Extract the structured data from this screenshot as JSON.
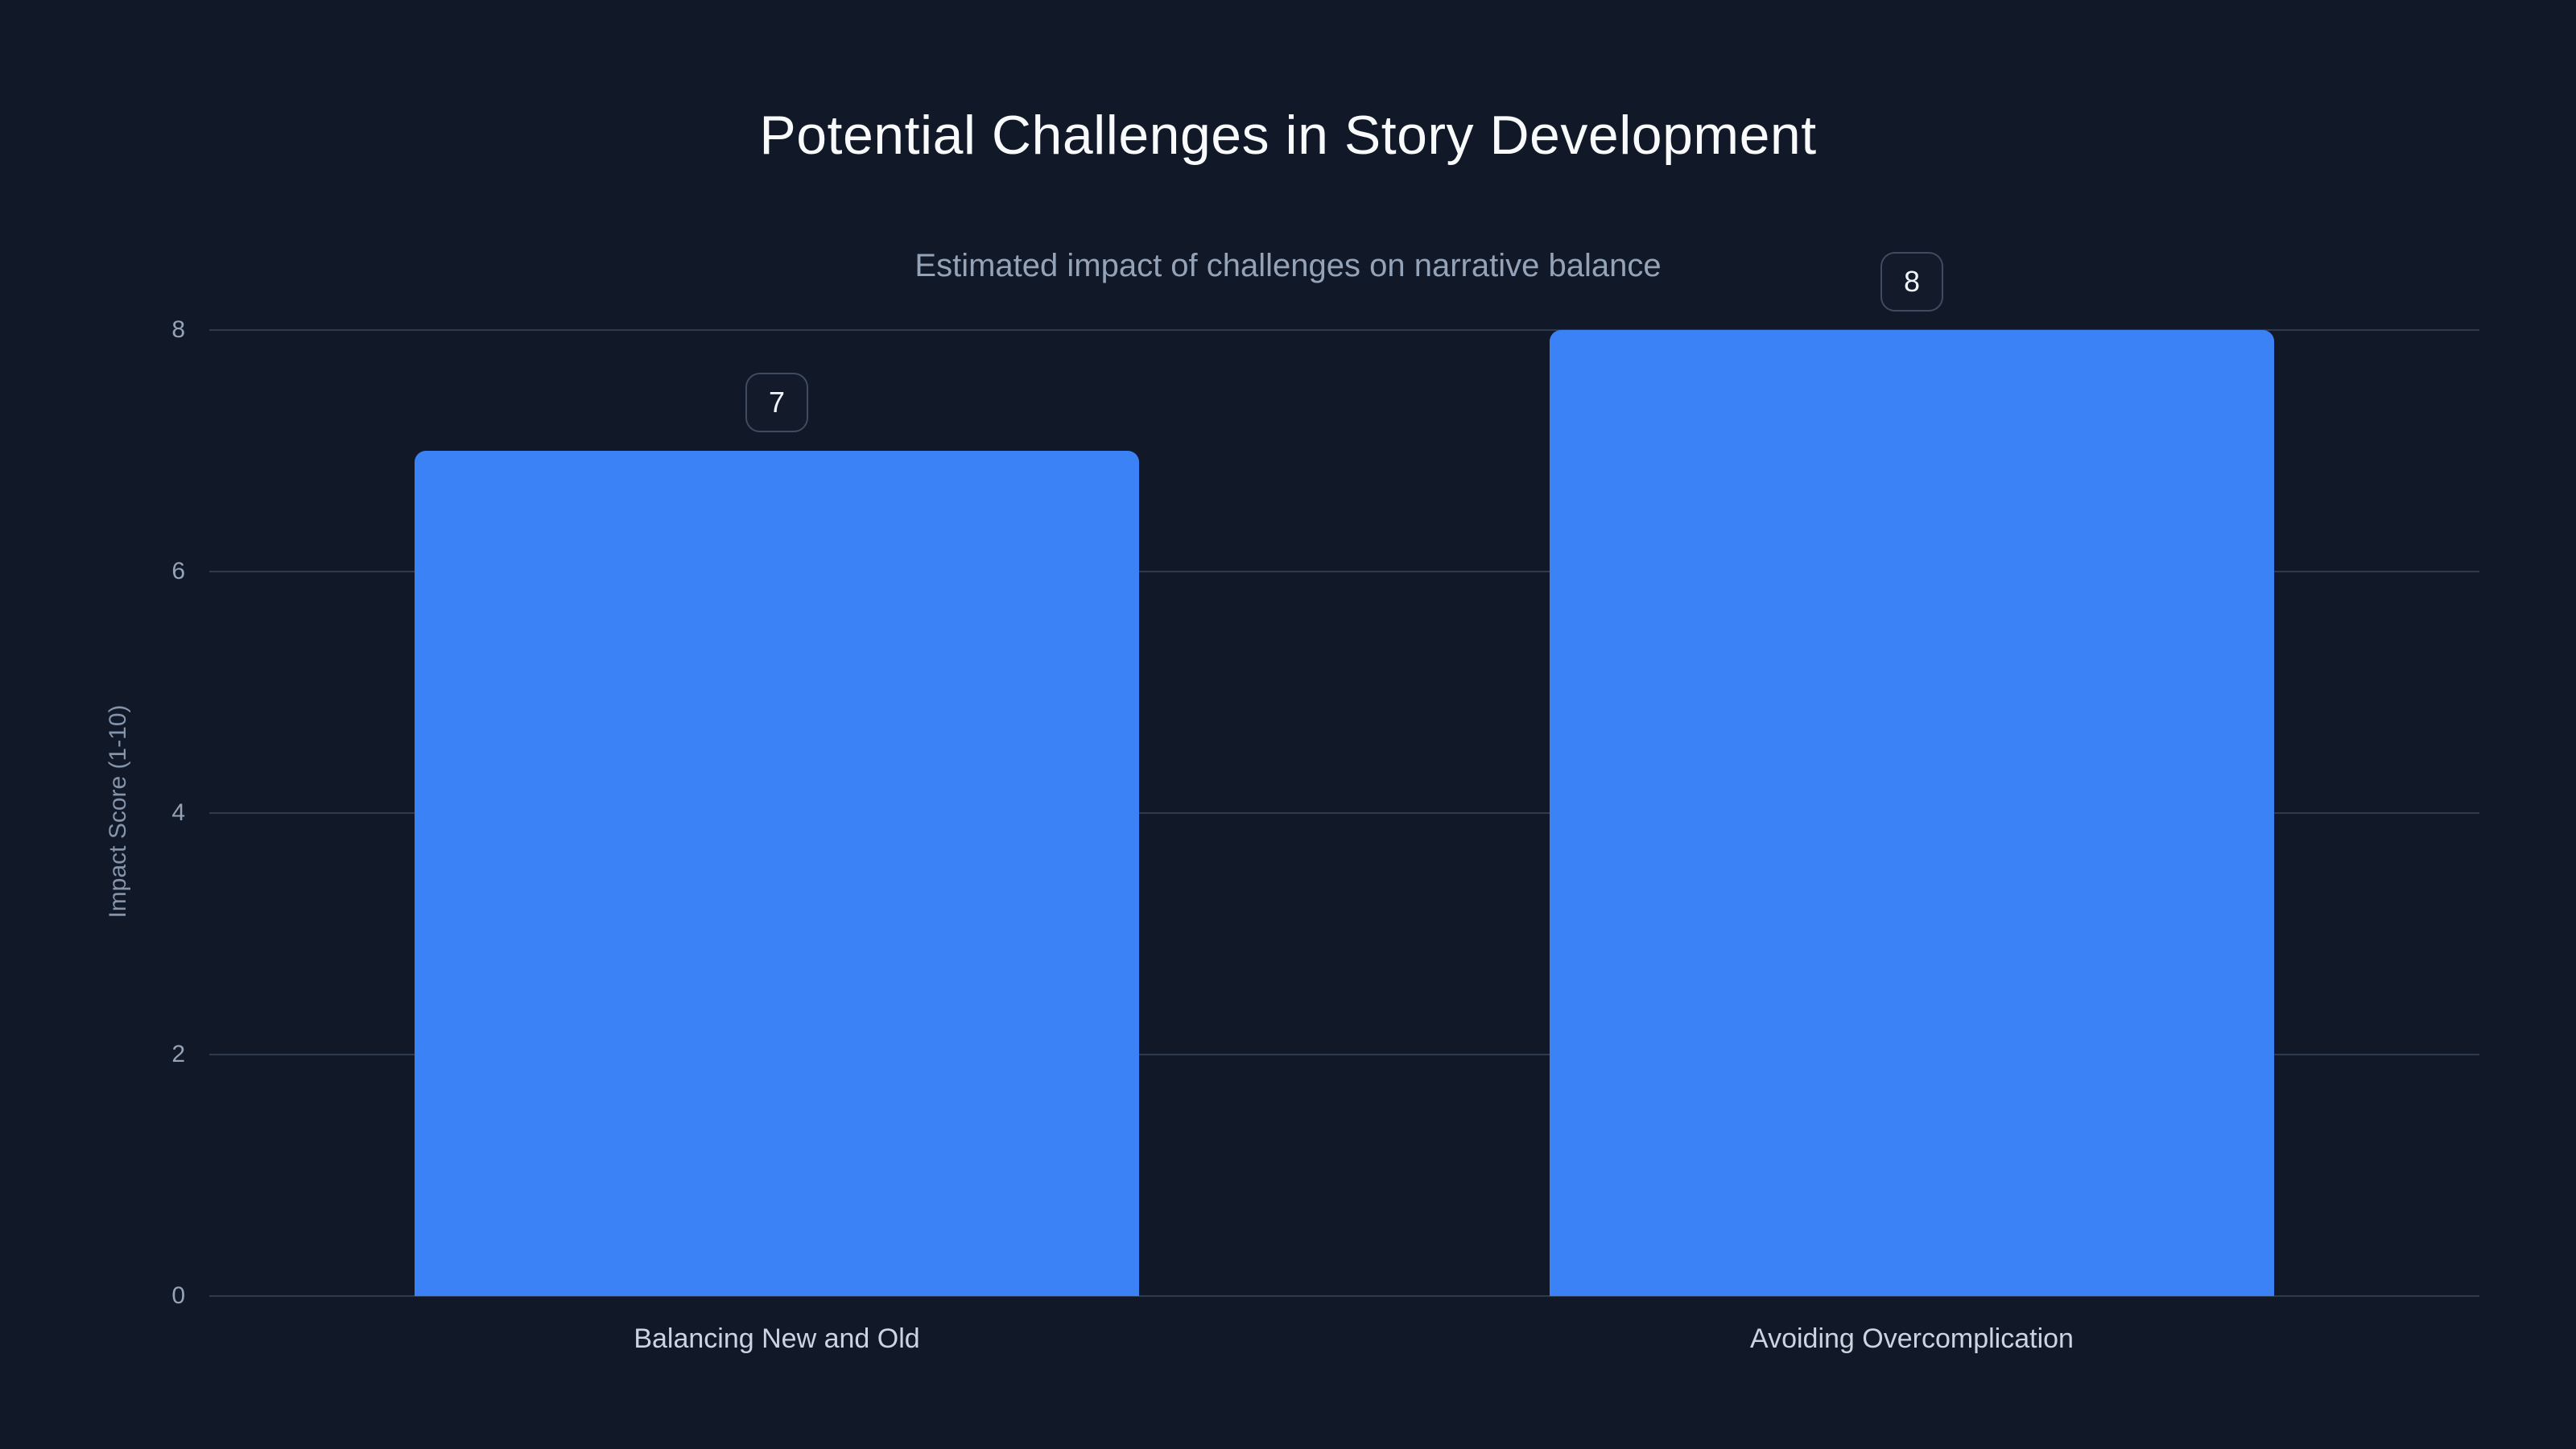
{
  "header": {
    "title": "Potential Challenges in Story Development",
    "subtitle": "Estimated impact of challenges on narrative balance"
  },
  "chart_data": {
    "type": "bar",
    "title": "Potential Challenges in Story Development",
    "subtitle": "Estimated impact of challenges on narrative balance",
    "categories": [
      "Balancing New and Old",
      "Avoiding Overcomplication"
    ],
    "values": [
      7,
      8
    ],
    "data_labels": [
      "7",
      "8"
    ],
    "xlabel": "",
    "ylabel": "Impact Score (1-10)",
    "ylim": [
      0,
      8
    ],
    "yticks": [
      0,
      2,
      4,
      6,
      8
    ],
    "grid": true,
    "legend": false
  },
  "theme": {
    "background": "#111827",
    "bar_color": "#3b82f6",
    "grid_color": "#2e3a4d",
    "title_color": "#f8fafc",
    "subtitle_color": "#94a3b8",
    "tick_label_color": "#94a3b8",
    "axis_title_color": "#8494ab",
    "category_label_color": "#cbd5e1",
    "badge_border_color": "#3e4b60",
    "badge_text_color": "#f1f5f9"
  }
}
